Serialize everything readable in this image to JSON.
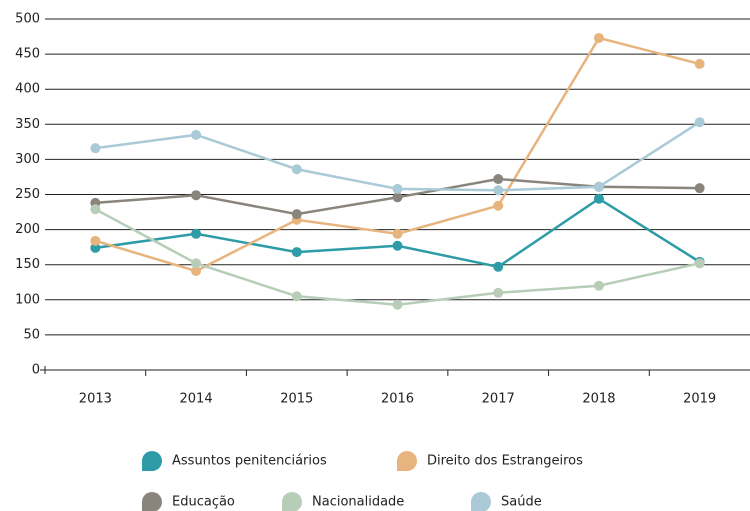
{
  "chart_data": {
    "type": "line",
    "categories": [
      "2013",
      "2014",
      "2015",
      "2016",
      "2017",
      "2018",
      "2019"
    ],
    "series": [
      {
        "name": "Assuntos penitenciários",
        "color": "#2e9ca6",
        "values": [
          174,
          194,
          168,
          177,
          147,
          244,
          154
        ]
      },
      {
        "name": "Direito dos Estrangeiros",
        "color": "#e8b47e",
        "values": [
          184,
          141,
          214,
          194,
          234,
          473,
          436
        ]
      },
      {
        "name": "Educação",
        "color": "#8a857c",
        "values": [
          238,
          249,
          222,
          246,
          272,
          261,
          259
        ]
      },
      {
        "name": "Nacionalidade",
        "color": "#b8cdb8",
        "values": [
          229,
          152,
          105,
          93,
          110,
          120,
          152
        ]
      },
      {
        "name": "Saúde",
        "color": "#a9cad6",
        "values": [
          316,
          335,
          286,
          258,
          256,
          261,
          353
        ]
      }
    ],
    "ylim": [
      0,
      500
    ],
    "yticks": [
      0,
      50,
      100,
      150,
      200,
      250,
      300,
      350,
      400,
      450,
      500
    ],
    "grid": true
  }
}
